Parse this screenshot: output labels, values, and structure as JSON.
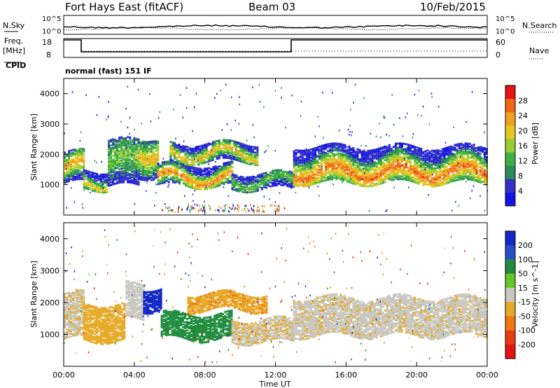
{
  "header": {
    "station": "Fort Hays East (fitACF)",
    "beam": "Beam 03",
    "date": "10/Feb/2015"
  },
  "noise_panel": {
    "left_label": "N.Sky",
    "right_label": "N.Search",
    "y_ticks": [
      "10^5",
      "10^0"
    ],
    "right_ticks": [
      "10^5",
      "10^0"
    ]
  },
  "freq_panel": {
    "label_top": "Freq.",
    "label_unit": "[MHz]",
    "y_ticks": [
      "18",
      "8"
    ],
    "right_ticks": [
      "60",
      "0"
    ],
    "right_label": "Nave",
    "cpid_label": "CPID",
    "cpid_text": "normal (fast) 151 IF"
  },
  "colors": {
    "power": [
      "#1414e6",
      "#3232c8",
      "#2e8b57",
      "#3cb043",
      "#9acd32",
      "#e6c81e",
      "#f0a020",
      "#f06414",
      "#e61414"
    ],
    "velocity": [
      "#1428c8",
      "#2850c8",
      "#1e8c3c",
      "#64c828",
      "#c8c8c0",
      "#e6aa28",
      "#f07814",
      "#e63c14",
      "#e61414"
    ]
  },
  "chart_data": [
    {
      "type": "heatmap",
      "name": "power",
      "xlabel": "",
      "ylabel": "Slant Range [km]",
      "xlim": [
        0,
        24
      ],
      "ylim": [
        0,
        4500
      ],
      "y_ticks": [
        "1000",
        "2000",
        "3000",
        "4000"
      ],
      "colorbar": {
        "label": "Power [dB]",
        "ticks": [
          "4",
          "8",
          "12",
          "16",
          "20",
          "24",
          "28"
        ]
      },
      "bands": [
        {
          "t0": 0.0,
          "t1": 1.1,
          "r0": 1100,
          "r1": 2100,
          "core": 1600,
          "intensity": 0.6
        },
        {
          "t0": 1.1,
          "t1": 2.5,
          "r0": 900,
          "r1": 1500,
          "core": 1100,
          "intensity": 0.5
        },
        {
          "t0": 2.5,
          "t1": 4.2,
          "r0": 1000,
          "r1": 2500,
          "core": 1800,
          "intensity": 0.35
        },
        {
          "t0": 4.2,
          "t1": 5.3,
          "r0": 1300,
          "r1": 2600,
          "core": 2100,
          "intensity": 0.55
        },
        {
          "t0": 5.3,
          "t1": 9.5,
          "r0": 1000,
          "r1": 1700,
          "core": 1250,
          "intensity": 0.65
        },
        {
          "t0": 6.0,
          "t1": 11.0,
          "r0": 1800,
          "r1": 2400,
          "core": 2050,
          "intensity": 0.55
        },
        {
          "t0": 9.5,
          "t1": 13.0,
          "r0": 900,
          "r1": 1400,
          "core": 1150,
          "intensity": 0.3
        },
        {
          "t0": 13.0,
          "t1": 24.0,
          "r0": 1100,
          "r1": 2300,
          "core": 1450,
          "intensity": 0.7
        }
      ]
    },
    {
      "type": "heatmap",
      "name": "velocity",
      "xlabel": "Time UT",
      "ylabel": "Slant Range [km]",
      "xlim": [
        0,
        24
      ],
      "ylim": [
        0,
        4500
      ],
      "x_ticks": [
        "00:00",
        "04:00",
        "08:00",
        "12:00",
        "16:00",
        "20:00",
        "00:00"
      ],
      "y_ticks": [
        "1000",
        "2000",
        "3000",
        "4000"
      ],
      "colorbar": {
        "label": "Velocity [m s^-1]",
        "ticks": [
          "200",
          "100",
          "50",
          "15",
          "-15",
          "-50",
          "-100",
          "-200"
        ]
      },
      "bands": [
        {
          "t0": 0.0,
          "t1": 1.1,
          "r0": 900,
          "r1": 2300,
          "v": -10
        },
        {
          "t0": 1.1,
          "t1": 3.5,
          "r0": 850,
          "r1": 2000,
          "v": -30
        },
        {
          "t0": 3.5,
          "t1": 4.5,
          "r0": 1500,
          "r1": 2600,
          "v": 0
        },
        {
          "t0": 4.5,
          "t1": 5.5,
          "r0": 1800,
          "r1": 2500,
          "v": 200
        },
        {
          "t0": 5.5,
          "t1": 9.5,
          "r0": 900,
          "r1": 1700,
          "v": 60
        },
        {
          "t0": 7.0,
          "t1": 11.5,
          "r0": 1800,
          "r1": 2300,
          "v": -40
        },
        {
          "t0": 9.5,
          "t1": 13.0,
          "r0": 800,
          "r1": 1500,
          "v": -10
        },
        {
          "t0": 13.0,
          "t1": 24.0,
          "r0": 1000,
          "r1": 2200,
          "v": -5
        }
      ]
    }
  ]
}
